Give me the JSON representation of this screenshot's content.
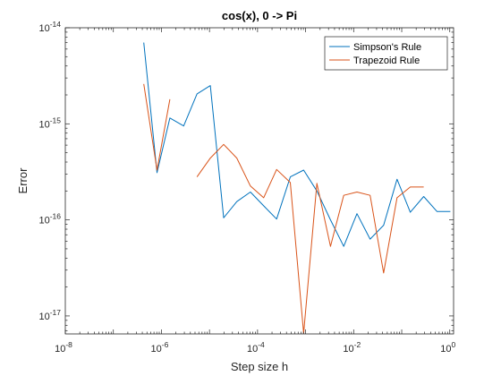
{
  "chart_data": {
    "type": "line",
    "title": "cos(x), 0 -> Pi",
    "xlabel": "Step size h",
    "ylabel": "Error",
    "x_scale": "log",
    "y_scale": "log",
    "xlim": [
      1e-08,
      1.2
    ],
    "ylim": [
      6.5e-18,
      1e-14
    ],
    "x_ticks": [
      {
        "value": 1e-08,
        "base": "10",
        "exp": "-8"
      },
      {
        "value": 1e-06,
        "base": "10",
        "exp": "-6"
      },
      {
        "value": 0.0001,
        "base": "10",
        "exp": "-4"
      },
      {
        "value": 0.01,
        "base": "10",
        "exp": "-2"
      },
      {
        "value": 1,
        "base": "10",
        "exp": "0"
      }
    ],
    "y_ticks": [
      {
        "value": 1e-17,
        "base": "10",
        "exp": "-17"
      },
      {
        "value": 1e-16,
        "base": "10",
        "exp": "-16"
      },
      {
        "value": 1e-15,
        "base": "10",
        "exp": "-15"
      },
      {
        "value": 1e-14,
        "base": "10",
        "exp": "-14"
      }
    ],
    "grid": false,
    "legend_position": "top-right",
    "series": [
      {
        "name": "Simpson's Rule",
        "color": "#0072BD",
        "x": [
          4.3e-07,
          8.1e-07,
          1.5e-06,
          2.9e-06,
          5.5e-06,
          1.04e-05,
          1.97e-05,
          3.7e-05,
          7.1e-05,
          0.000134,
          0.00025,
          0.00048,
          0.00091,
          0.00172,
          0.0033,
          0.0062,
          0.0117,
          0.022,
          0.042,
          0.08,
          0.151,
          0.287,
          0.543,
          1.03
        ],
        "y": [
          7e-15,
          3.1e-16,
          1.15e-15,
          9.5e-16,
          2.05e-15,
          2.5e-15,
          1.05e-16,
          1.55e-16,
          1.95e-16,
          1.4e-16,
          1.02e-16,
          2.8e-16,
          3.3e-16,
          2e-16,
          1e-16,
          5.3e-17,
          1.16e-16,
          6.3e-17,
          8.8e-17,
          2.65e-16,
          1.2e-16,
          1.75e-16,
          1.22e-16,
          1.22e-16
        ]
      },
      {
        "name": "Trapezoid Rule",
        "color": "#D95319",
        "segments": [
          {
            "x": [
              4.3e-07,
              8.1e-07,
              1.5e-06
            ],
            "y": [
              2.6e-15,
              3.3e-16,
              1.8e-15
            ]
          },
          {
            "x": [
              5.5e-06,
              1.04e-05,
              1.97e-05,
              3.7e-05,
              7.1e-05,
              0.000134,
              0.00025,
              0.00048,
              0.00091,
              0.00172,
              0.0033,
              0.0062,
              0.0117,
              0.022,
              0.042,
              0.08,
              0.151,
              0.287
            ],
            "y": [
              2.8e-16,
              4.4e-16,
              6.1e-16,
              4.4e-16,
              2.25e-16,
              1.7e-16,
              3.35e-16,
              2.45e-16,
              6.6e-18,
              2.4e-16,
              5.3e-17,
              1.8e-16,
              1.95e-16,
              1.8e-16,
              2.8e-17,
              1.7e-16,
              2.2e-16,
              2.2e-16
            ]
          }
        ]
      }
    ]
  }
}
